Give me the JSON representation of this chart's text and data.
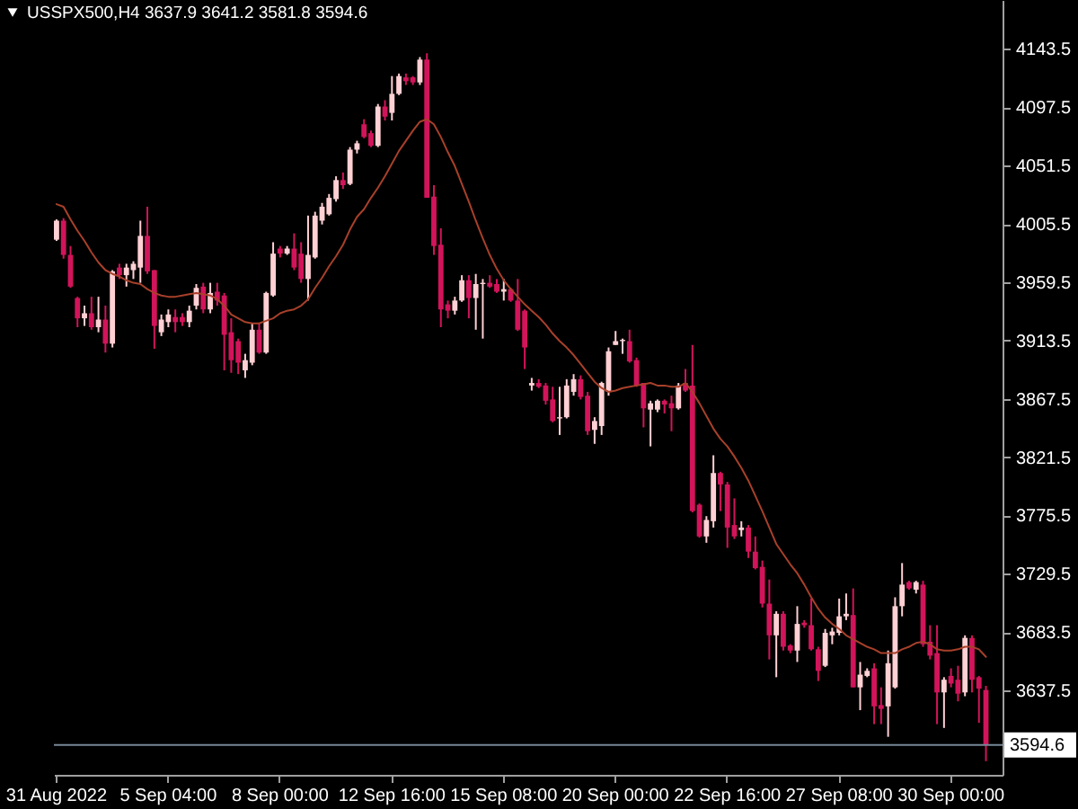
{
  "chart_data": {
    "type": "candlestick",
    "title": "USSPX500,H4  3637.9 3641.2 3581.8 3594.6",
    "categories": [
      "31 Aug 2022",
      null,
      null,
      null,
      null,
      null,
      null,
      null,
      null,
      null,
      null,
      null,
      null,
      null,
      null,
      null,
      "5 Sep 04:00",
      null,
      null,
      null,
      null,
      null,
      null,
      null,
      null,
      null,
      null,
      null,
      null,
      null,
      null,
      null,
      "8 Sep 00:00",
      null,
      null,
      null,
      null,
      null,
      null,
      null,
      null,
      null,
      null,
      null,
      null,
      null,
      null,
      null,
      "12 Sep 16:00",
      null,
      null,
      null,
      null,
      null,
      null,
      null,
      null,
      null,
      null,
      null,
      null,
      null,
      null,
      null,
      "15 Sep 08:00",
      null,
      null,
      null,
      null,
      null,
      null,
      null,
      null,
      null,
      null,
      null,
      null,
      null,
      null,
      null,
      "20 Sep 00:00",
      null,
      null,
      null,
      null,
      null,
      null,
      null,
      null,
      null,
      null,
      null,
      null,
      null,
      null,
      null,
      "22 Sep 16:00",
      null,
      null,
      null,
      null,
      null,
      null,
      null,
      null,
      null,
      null,
      null,
      null,
      null,
      null,
      null,
      "27 Sep 08:00",
      null,
      null,
      null,
      null,
      null,
      null,
      null,
      null,
      null,
      null,
      null,
      null,
      null,
      null,
      null,
      "30 Sep 00:00",
      null,
      null,
      null,
      null,
      null
    ],
    "ohlc": [
      [
        3993,
        4009,
        3992,
        4008
      ],
      [
        4008,
        4010,
        3978,
        3981
      ],
      [
        3981,
        3988,
        3955,
        3956
      ],
      [
        3947,
        3948,
        3924,
        3931
      ],
      [
        3931,
        3941,
        3925,
        3935
      ],
      [
        3935,
        3948,
        3922,
        3924
      ],
      [
        3924,
        3948,
        3920,
        3930
      ],
      [
        3930,
        3941,
        3904,
        3911
      ],
      [
        3911,
        3969,
        3908,
        3968
      ],
      [
        3971,
        3974,
        3962,
        3965
      ],
      [
        3965,
        3974,
        3956,
        3971
      ],
      [
        3969,
        3976,
        3962,
        3974
      ],
      [
        3971,
        4008,
        3959,
        3996
      ],
      [
        3996,
        4019,
        3966,
        3968
      ],
      [
        3969,
        3969,
        3907,
        3925
      ],
      [
        3920,
        3934,
        3917,
        3930
      ],
      [
        3928,
        3938,
        3924,
        3934
      ],
      [
        3932,
        3938,
        3920,
        3928
      ],
      [
        3932,
        3935,
        3925,
        3928
      ],
      [
        3928,
        3941,
        3924,
        3937
      ],
      [
        3941,
        3958,
        3938,
        3955
      ],
      [
        3956,
        3959,
        3935,
        3938
      ],
      [
        3938,
        3959,
        3935,
        3951
      ],
      [
        3952,
        3959,
        3941,
        3945
      ],
      [
        3949,
        3951,
        3890,
        3918
      ],
      [
        3920,
        3931,
        3888,
        3898
      ],
      [
        3913,
        3915,
        3887,
        3896
      ],
      [
        3890,
        3903,
        3884,
        3898
      ],
      [
        3896,
        3927,
        3894,
        3922
      ],
      [
        3922,
        3927,
        3903,
        3904
      ],
      [
        3904,
        3952,
        3903,
        3951
      ],
      [
        3949,
        3991,
        3948,
        3982
      ],
      [
        3986,
        3988,
        3979,
        3982
      ],
      [
        3982,
        3988,
        3981,
        3986
      ],
      [
        3986,
        3998,
        3969,
        3971
      ],
      [
        3982,
        3991,
        3959,
        3962
      ],
      [
        3962,
        4012,
        3945,
        3981
      ],
      [
        3979,
        4015,
        3978,
        4012
      ],
      [
        4008,
        4022,
        4005,
        4019
      ],
      [
        4013,
        4029,
        4012,
        4026
      ],
      [
        4025,
        4043,
        4023,
        4040
      ],
      [
        4040,
        4046,
        4033,
        4036
      ],
      [
        4037,
        4066,
        4036,
        4064
      ],
      [
        4064,
        4071,
        4061,
        4069
      ],
      [
        4084,
        4088,
        4073,
        4074
      ],
      [
        4077,
        4079,
        4066,
        4067
      ],
      [
        4067,
        4100,
        4066,
        4098
      ],
      [
        4098,
        4103,
        4087,
        4090
      ],
      [
        4093,
        4122,
        4087,
        4108
      ],
      [
        4108,
        4124,
        4107,
        4122
      ],
      [
        4121,
        4124,
        4115,
        4118
      ],
      [
        4121,
        4122,
        4115,
        4117
      ],
      [
        4117,
        4137,
        4115,
        4135
      ],
      [
        4135,
        4140,
        4026,
        4026
      ],
      [
        4027,
        4036,
        3981,
        3988
      ],
      [
        3989,
        4002,
        3924,
        3938
      ],
      [
        3942,
        3945,
        3931,
        3937
      ],
      [
        3937,
        3948,
        3934,
        3945
      ],
      [
        3945,
        3965,
        3944,
        3961
      ],
      [
        3961,
        3965,
        3931,
        3947
      ],
      [
        3947,
        3966,
        3922,
        3958
      ],
      [
        3958,
        3962,
        3915,
        3959
      ],
      [
        3959,
        3965,
        3955,
        3956
      ],
      [
        3958,
        3962,
        3951,
        3952
      ],
      [
        3952,
        3962,
        3945,
        3954
      ],
      [
        3954,
        3955,
        3944,
        3945
      ],
      [
        3945,
        3962,
        3921,
        3922
      ],
      [
        3937,
        3938,
        3891,
        3908
      ],
      [
        3878,
        3884,
        3874,
        3880
      ],
      [
        3880,
        3883,
        3876,
        3877
      ],
      [
        3878,
        3880,
        3863,
        3866
      ],
      [
        3867,
        3877,
        3849,
        3850
      ],
      [
        3852,
        3877,
        3839,
        3853
      ],
      [
        3853,
        3883,
        3852,
        3878
      ],
      [
        3873,
        3887,
        3870,
        3883
      ],
      [
        3883,
        3886,
        3867,
        3869
      ],
      [
        3870,
        3873,
        3839,
        3842
      ],
      [
        3843,
        3853,
        3832,
        3850
      ],
      [
        3846,
        3881,
        3839,
        3880
      ],
      [
        3873,
        3908,
        3870,
        3905
      ],
      [
        3910,
        3921,
        3910,
        3913
      ],
      [
        3913,
        3915,
        3903,
        3914
      ],
      [
        3913,
        3922,
        3896,
        3897
      ],
      [
        3898,
        3900,
        3877,
        3878
      ],
      [
        3880,
        3880,
        3845,
        3860
      ],
      [
        3859,
        3866,
        3830,
        3864
      ],
      [
        3859,
        3867,
        3857,
        3866
      ],
      [
        3866,
        3867,
        3856,
        3863
      ],
      [
        3864,
        3870,
        3842,
        3860
      ],
      [
        3860,
        3880,
        3859,
        3878
      ],
      [
        3880,
        3891,
        3873,
        3874
      ],
      [
        3878,
        3910,
        3778,
        3779
      ],
      [
        3784,
        3785,
        3758,
        3759
      ],
      [
        3759,
        3775,
        3754,
        3772
      ],
      [
        3771,
        3823,
        3766,
        3809
      ],
      [
        3809,
        3810,
        3779,
        3800
      ],
      [
        3800,
        3802,
        3750,
        3766
      ],
      [
        3768,
        3789,
        3757,
        3759
      ],
      [
        3764,
        3771,
        3759,
        3766
      ],
      [
        3766,
        3768,
        3742,
        3747
      ],
      [
        3747,
        3759,
        3733,
        3734
      ],
      [
        3735,
        3740,
        3703,
        3706
      ],
      [
        3706,
        3725,
        3662,
        3681
      ],
      [
        3681,
        3700,
        3648,
        3698
      ],
      [
        3698,
        3700,
        3669,
        3672
      ],
      [
        3673,
        3674,
        3667,
        3669
      ],
      [
        3669,
        3704,
        3660,
        3690
      ],
      [
        3691,
        3693,
        3687,
        3689
      ],
      [
        3689,
        3710,
        3669,
        3670
      ],
      [
        3670,
        3672,
        3645,
        3653
      ],
      [
        3657,
        3686,
        3656,
        3683
      ],
      [
        3681,
        3687,
        3674,
        3684
      ],
      [
        3683,
        3710,
        3681,
        3696
      ],
      [
        3696,
        3714,
        3693,
        3698
      ],
      [
        3697,
        3718,
        3640,
        3640
      ],
      [
        3640,
        3660,
        3622,
        3650
      ],
      [
        3649,
        3655,
        3648,
        3653
      ],
      [
        3655,
        3659,
        3611,
        3625
      ],
      [
        3626,
        3640,
        3611,
        3623
      ],
      [
        3625,
        3669,
        3601,
        3659
      ],
      [
        3640,
        3711,
        3639,
        3704
      ],
      [
        3704,
        3738,
        3696,
        3721
      ],
      [
        3723,
        3724,
        3717,
        3718
      ],
      [
        3717,
        3724,
        3714,
        3723
      ],
      [
        3721,
        3724,
        3672,
        3674
      ],
      [
        3676,
        3689,
        3662,
        3665
      ],
      [
        3667,
        3689,
        3611,
        3636
      ],
      [
        3636,
        3648,
        3608,
        3646
      ],
      [
        3649,
        3655,
        3640,
        3643
      ],
      [
        3646,
        3657,
        3629,
        3635
      ],
      [
        3636,
        3681,
        3633,
        3679
      ],
      [
        3679,
        3681,
        3636,
        3646
      ],
      [
        3648,
        3649,
        3612,
        3639
      ],
      [
        3637.9,
        3641.2,
        3581.8,
        3594.6
      ]
    ],
    "colors": [
      "#ffd0d4",
      "#d2145a",
      "#d2145a",
      "#d2145a",
      "#ffd0d4",
      "#d2145a",
      "#ffd0d4",
      "#d2145a",
      "#ffd0d4",
      "#d2145a",
      "#ffd0d4",
      "#ffd0d4",
      "#ffd0d4",
      "#d2145a",
      "#d2145a",
      "#ffd0d4",
      "#ffd0d4",
      "#d2145a",
      "#d2145a",
      "#ffd0d4",
      "#ffd0d4",
      "#d2145a",
      "#ffd0d4",
      "#d2145a",
      "#d2145a",
      "#d2145a",
      "#d2145a",
      "#ffd0d4",
      "#ffd0d4",
      "#d2145a",
      "#ffd0d4",
      "#ffd0d4",
      "#d2145a",
      "#ffd0d4",
      "#d2145a",
      "#d2145a",
      "#ffd0d4",
      "#ffd0d4",
      "#ffd0d4",
      "#ffd0d4",
      "#ffd0d4",
      "#d2145a",
      "#ffd0d4",
      "#ffd0d4",
      "#d2145a",
      "#d2145a",
      "#ffd0d4",
      "#d2145a",
      "#ffd0d4",
      "#ffd0d4",
      "#d2145a",
      "#d2145a",
      "#ffd0d4",
      "#d2145a",
      "#d2145a",
      "#d2145a",
      "#d2145a",
      "#ffd0d4",
      "#ffd0d4",
      "#d2145a",
      "#ffd0d4",
      "#ffd0d4",
      "#d2145a",
      "#d2145a",
      "#ffd0d4",
      "#d2145a",
      "#d2145a",
      "#d2145a",
      "#ffd0d4",
      "#d2145a",
      "#d2145a",
      "#d2145a",
      "#ffd0d4",
      "#ffd0d4",
      "#ffd0d4",
      "#d2145a",
      "#d2145a",
      "#ffd0d4",
      "#ffd0d4",
      "#ffd0d4",
      "#ffd0d4",
      "#ffd0d4",
      "#d2145a",
      "#d2145a",
      "#d2145a",
      "#ffd0d4",
      "#ffd0d4",
      "#d2145a",
      "#d2145a",
      "#ffd0d4",
      "#d2145a",
      "#d2145a",
      "#d2145a",
      "#ffd0d4",
      "#ffd0d4",
      "#d2145a",
      "#d2145a",
      "#d2145a",
      "#ffd0d4",
      "#d2145a",
      "#d2145a",
      "#d2145a",
      "#d2145a",
      "#ffd0d4",
      "#d2145a",
      "#d2145a",
      "#ffd0d4",
      "#d2145a",
      "#d2145a",
      "#d2145a",
      "#ffd0d4",
      "#ffd0d4",
      "#ffd0d4",
      "#ffd0d4",
      "#d2145a",
      "#ffd0d4",
      "#ffd0d4",
      "#d2145a",
      "#d2145a",
      "#ffd0d4",
      "#ffd0d4",
      "#ffd0d4",
      "#d2145a",
      "#ffd0d4",
      "#d2145a",
      "#d2145a",
      "#d2145a",
      "#ffd0d4",
      "#d2145a",
      "#d2145a",
      "#ffd0d4",
      "#d2145a",
      "#d2145a",
      "#d2145a"
    ],
    "series": [
      {
        "type": "line",
        "color": "#a8402a",
        "values": [
          4021,
          4019,
          4009,
          4000,
          3992,
          3983,
          3975,
          3969,
          3966,
          3964,
          3961,
          3959,
          3958,
          3954,
          3951,
          3949,
          3948,
          3948,
          3949,
          3950,
          3951,
          3950,
          3949,
          3946,
          3941,
          3934,
          3931,
          3928,
          3927,
          3927,
          3929,
          3931,
          3935,
          3937,
          3938,
          3941,
          3946,
          3955,
          3963,
          3972,
          3980,
          3989,
          4001,
          4011,
          4017,
          4026,
          4034,
          4043,
          4053,
          4063,
          4071,
          4079,
          4086,
          4088,
          4084,
          4074,
          4062,
          4051,
          4037,
          4023,
          4008,
          3994,
          3981,
          3970,
          3961,
          3954,
          3948,
          3942,
          3937,
          3932,
          3926,
          3919,
          3913,
          3908,
          3902,
          3895,
          3888,
          3881,
          3876,
          3873,
          3874,
          3876,
          3877,
          3878,
          3879,
          3880,
          3878,
          3878,
          3877,
          3877,
          3880,
          3873,
          3864,
          3854,
          3844,
          3836,
          3830,
          3822,
          3813,
          3803,
          3791,
          3779,
          3766,
          3753,
          3745,
          3737,
          3730,
          3721,
          3711,
          3702,
          3695,
          3690,
          3686,
          3681,
          3678,
          3675,
          3672,
          3670,
          3667,
          3667,
          3667,
          3670,
          3672,
          3675,
          3676,
          3674,
          3670,
          3669,
          3669,
          3670,
          3672,
          3672,
          3670,
          3664
        ]
      }
    ],
    "ylim": [
      3571,
      4182
    ],
    "yticks": [
      4143.5,
      4097.5,
      4051.5,
      4005.5,
      3959.5,
      3913.5,
      3867.5,
      3821.5,
      3775.5,
      3729.5,
      3683.5,
      3637.5
    ],
    "ref_lines": [
      {
        "axis": "y",
        "value": 3594.6,
        "label": "3594.6",
        "color": "#778899"
      }
    ]
  }
}
